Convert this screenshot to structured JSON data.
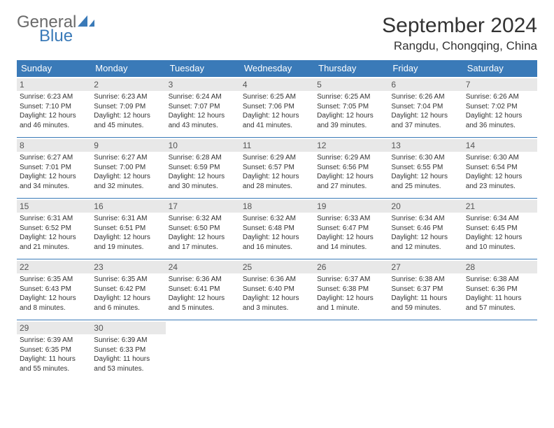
{
  "brand": {
    "general": "General",
    "blue": "Blue",
    "sail_color": "#3a7ab8"
  },
  "title": "September 2024",
  "location": "Rangdu, Chongqing, China",
  "colors": {
    "header_bg": "#3a7ab8",
    "header_text": "#ffffff",
    "daynum_bg": "#e8e8e8",
    "border": "#3a7ab8"
  },
  "weekdays": [
    "Sunday",
    "Monday",
    "Tuesday",
    "Wednesday",
    "Thursday",
    "Friday",
    "Saturday"
  ],
  "weeks": [
    [
      {
        "day": "1",
        "sunrise": "6:23 AM",
        "sunset": "7:10 PM",
        "daylight": "12 hours and 46 minutes."
      },
      {
        "day": "2",
        "sunrise": "6:23 AM",
        "sunset": "7:09 PM",
        "daylight": "12 hours and 45 minutes."
      },
      {
        "day": "3",
        "sunrise": "6:24 AM",
        "sunset": "7:07 PM",
        "daylight": "12 hours and 43 minutes."
      },
      {
        "day": "4",
        "sunrise": "6:25 AM",
        "sunset": "7:06 PM",
        "daylight": "12 hours and 41 minutes."
      },
      {
        "day": "5",
        "sunrise": "6:25 AM",
        "sunset": "7:05 PM",
        "daylight": "12 hours and 39 minutes."
      },
      {
        "day": "6",
        "sunrise": "6:26 AM",
        "sunset": "7:04 PM",
        "daylight": "12 hours and 37 minutes."
      },
      {
        "day": "7",
        "sunrise": "6:26 AM",
        "sunset": "7:02 PM",
        "daylight": "12 hours and 36 minutes."
      }
    ],
    [
      {
        "day": "8",
        "sunrise": "6:27 AM",
        "sunset": "7:01 PM",
        "daylight": "12 hours and 34 minutes."
      },
      {
        "day": "9",
        "sunrise": "6:27 AM",
        "sunset": "7:00 PM",
        "daylight": "12 hours and 32 minutes."
      },
      {
        "day": "10",
        "sunrise": "6:28 AM",
        "sunset": "6:59 PM",
        "daylight": "12 hours and 30 minutes."
      },
      {
        "day": "11",
        "sunrise": "6:29 AM",
        "sunset": "6:57 PM",
        "daylight": "12 hours and 28 minutes."
      },
      {
        "day": "12",
        "sunrise": "6:29 AM",
        "sunset": "6:56 PM",
        "daylight": "12 hours and 27 minutes."
      },
      {
        "day": "13",
        "sunrise": "6:30 AM",
        "sunset": "6:55 PM",
        "daylight": "12 hours and 25 minutes."
      },
      {
        "day": "14",
        "sunrise": "6:30 AM",
        "sunset": "6:54 PM",
        "daylight": "12 hours and 23 minutes."
      }
    ],
    [
      {
        "day": "15",
        "sunrise": "6:31 AM",
        "sunset": "6:52 PM",
        "daylight": "12 hours and 21 minutes."
      },
      {
        "day": "16",
        "sunrise": "6:31 AM",
        "sunset": "6:51 PM",
        "daylight": "12 hours and 19 minutes."
      },
      {
        "day": "17",
        "sunrise": "6:32 AM",
        "sunset": "6:50 PM",
        "daylight": "12 hours and 17 minutes."
      },
      {
        "day": "18",
        "sunrise": "6:32 AM",
        "sunset": "6:48 PM",
        "daylight": "12 hours and 16 minutes."
      },
      {
        "day": "19",
        "sunrise": "6:33 AM",
        "sunset": "6:47 PM",
        "daylight": "12 hours and 14 minutes."
      },
      {
        "day": "20",
        "sunrise": "6:34 AM",
        "sunset": "6:46 PM",
        "daylight": "12 hours and 12 minutes."
      },
      {
        "day": "21",
        "sunrise": "6:34 AM",
        "sunset": "6:45 PM",
        "daylight": "12 hours and 10 minutes."
      }
    ],
    [
      {
        "day": "22",
        "sunrise": "6:35 AM",
        "sunset": "6:43 PM",
        "daylight": "12 hours and 8 minutes."
      },
      {
        "day": "23",
        "sunrise": "6:35 AM",
        "sunset": "6:42 PM",
        "daylight": "12 hours and 6 minutes."
      },
      {
        "day": "24",
        "sunrise": "6:36 AM",
        "sunset": "6:41 PM",
        "daylight": "12 hours and 5 minutes."
      },
      {
        "day": "25",
        "sunrise": "6:36 AM",
        "sunset": "6:40 PM",
        "daylight": "12 hours and 3 minutes."
      },
      {
        "day": "26",
        "sunrise": "6:37 AM",
        "sunset": "6:38 PM",
        "daylight": "12 hours and 1 minute."
      },
      {
        "day": "27",
        "sunrise": "6:38 AM",
        "sunset": "6:37 PM",
        "daylight": "11 hours and 59 minutes."
      },
      {
        "day": "28",
        "sunrise": "6:38 AM",
        "sunset": "6:36 PM",
        "daylight": "11 hours and 57 minutes."
      }
    ],
    [
      {
        "day": "29",
        "sunrise": "6:39 AM",
        "sunset": "6:35 PM",
        "daylight": "11 hours and 55 minutes."
      },
      {
        "day": "30",
        "sunrise": "6:39 AM",
        "sunset": "6:33 PM",
        "daylight": "11 hours and 53 minutes."
      },
      null,
      null,
      null,
      null,
      null
    ]
  ],
  "labels": {
    "sunrise": "Sunrise:",
    "sunset": "Sunset:",
    "daylight": "Daylight:"
  }
}
